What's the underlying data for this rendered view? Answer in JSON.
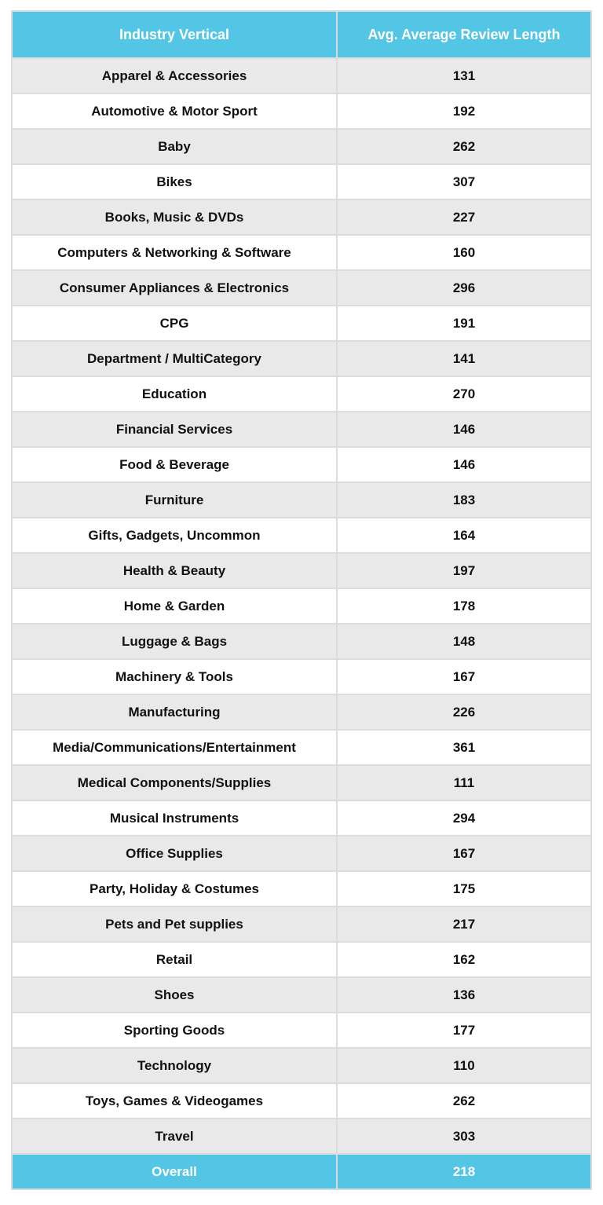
{
  "table": {
    "header": [
      "Industry Vertical",
      "Avg. Average Review Length"
    ],
    "rows": [
      [
        "Apparel & Accessories",
        131
      ],
      [
        "Automotive & Motor Sport",
        192
      ],
      [
        "Baby",
        262
      ],
      [
        "Bikes",
        307
      ],
      [
        "Books, Music & DVDs",
        227
      ],
      [
        "Computers & Networking & Software",
        160
      ],
      [
        "Consumer Appliances & Electronics",
        296
      ],
      [
        "CPG",
        191
      ],
      [
        "Department / MultiCategory",
        141
      ],
      [
        "Education",
        270
      ],
      [
        "Financial Services",
        146
      ],
      [
        "Food & Beverage",
        146
      ],
      [
        "Furniture",
        183
      ],
      [
        "Gifts, Gadgets, Uncommon",
        164
      ],
      [
        "Health & Beauty",
        197
      ],
      [
        "Home & Garden",
        178
      ],
      [
        "Luggage & Bags",
        148
      ],
      [
        "Machinery & Tools",
        167
      ],
      [
        "Manufacturing",
        226
      ],
      [
        "Media/Communications/Entertainment",
        361
      ],
      [
        "Medical Components/Supplies",
        111
      ],
      [
        "Musical Instruments",
        294
      ],
      [
        "Office Supplies",
        167
      ],
      [
        "Party, Holiday & Costumes",
        175
      ],
      [
        "Pets and Pet supplies",
        217
      ],
      [
        "Retail",
        162
      ],
      [
        "Shoes",
        136
      ],
      [
        "Sporting Goods",
        177
      ],
      [
        "Technology",
        110
      ],
      [
        "Toys, Games & Videogames",
        262
      ],
      [
        "Travel",
        303
      ]
    ],
    "footer": [
      "Overall",
      218
    ]
  }
}
